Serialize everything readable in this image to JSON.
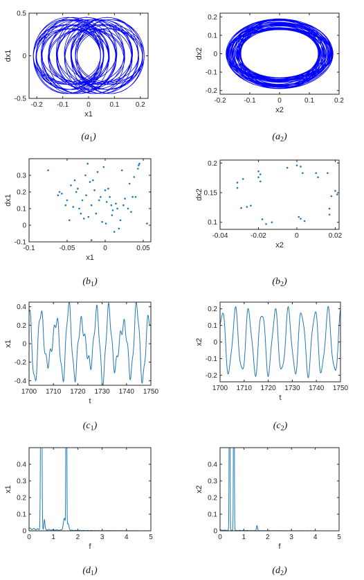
{
  "panels": [
    {
      "id": "a1",
      "caption": "(a1)",
      "caption_main": "(a",
      "caption_sub": "1",
      "caption_end": ")"
    },
    {
      "id": "a2",
      "caption": "(a2)",
      "caption_main": "(a",
      "caption_sub": "2",
      "caption_end": ")"
    },
    {
      "id": "b1",
      "caption": "(b1)",
      "caption_main": "(b",
      "caption_sub": "1",
      "caption_end": ")"
    },
    {
      "id": "b2",
      "caption": "(b2)",
      "caption_main": "(b",
      "caption_sub": "2",
      "caption_end": ")"
    },
    {
      "id": "c1",
      "caption": "(c1)",
      "caption_main": "(c",
      "caption_sub": "1",
      "caption_end": ")"
    },
    {
      "id": "c2",
      "caption": "(c2)",
      "caption_main": "(c",
      "caption_sub": "2",
      "caption_end": ")"
    },
    {
      "id": "d1",
      "caption": "(d1)",
      "caption_main": "(d",
      "caption_sub": "1",
      "caption_end": ")"
    },
    {
      "id": "d2",
      "caption": "(d2)",
      "caption_main": "(d",
      "caption_sub": "2",
      "caption_end": ")"
    }
  ],
  "chart_data": [
    {
      "id": "a1",
      "type": "line",
      "subtype": "phase-portrait",
      "xlabel": "x1",
      "ylabel": "dx1",
      "xlim": [
        -0.23,
        0.23
      ],
      "ylim": [
        -0.5,
        0.5
      ],
      "xticks": [
        -0.2,
        -0.1,
        0,
        0.1,
        0.2
      ],
      "xtick_labels": [
        "-0.2",
        "-0.1",
        "0",
        "0.1",
        "0.2"
      ],
      "yticks": [
        -0.5,
        0,
        0.5
      ],
      "ytick_labels": [
        "-0.5",
        "0",
        "0.5"
      ],
      "color": "#0000ff",
      "orbit": {
        "x_amplitudes": [
          0.13,
          0.085
        ],
        "x_freqs": [
          1,
          2.7
        ],
        "y_amplitude": 0.38,
        "y_amp_variation": 0.07,
        "turns": 40
      }
    },
    {
      "id": "a2",
      "type": "line",
      "subtype": "phase-portrait",
      "xlabel": "x2",
      "ylabel": "dx2",
      "xlim": [
        -0.2,
        0.2
      ],
      "ylim": [
        -0.22,
        0.22
      ],
      "xticks": [
        -0.2,
        -0.1,
        0,
        0.1,
        0.2
      ],
      "xtick_labels": [
        "-0.2",
        "-0.1",
        "0",
        "0.1",
        "0.2"
      ],
      "yticks": [
        -0.2,
        -0.1,
        0,
        0.1,
        0.2
      ],
      "ytick_labels": [
        "-0.2",
        "-0.1",
        "0",
        "0.1",
        "0.2"
      ],
      "color": "#0000ff",
      "orbit": {
        "x_amplitude": 0.155,
        "x_amp_variation": 0.025,
        "y_amplitude": 0.16,
        "y_amp_variation": 0.03,
        "turns": 40
      }
    },
    {
      "id": "b1",
      "type": "scatter",
      "subtype": "poincare-section",
      "xlabel": "x1",
      "ylabel": "dx1",
      "xlim": [
        -0.1,
        0.06
      ],
      "ylim": [
        -0.1,
        0.4
      ],
      "xticks": [
        -0.1,
        -0.05,
        0,
        0.05
      ],
      "xtick_labels": [
        "-0.1",
        "-0.05",
        "0",
        "0.05"
      ],
      "yticks": [
        -0.1,
        0,
        0.1,
        0.2,
        0.3
      ],
      "ytick_labels": [
        "-0.1",
        "0",
        "0.1",
        "0.2",
        "0.3"
      ],
      "color": "#1f77b4",
      "points": [
        [
          -0.075,
          0.33
        ],
        [
          -0.062,
          0.18
        ],
        [
          -0.06,
          0.2
        ],
        [
          -0.057,
          0.19
        ],
        [
          -0.052,
          0.12
        ],
        [
          -0.05,
          0.15
        ],
        [
          -0.047,
          0.03
        ],
        [
          -0.045,
          0.24
        ],
        [
          -0.042,
          0.11
        ],
        [
          -0.04,
          0.27
        ],
        [
          -0.038,
          0.2
        ],
        [
          -0.036,
          0.22
        ],
        [
          -0.034,
          0.1
        ],
        [
          -0.032,
          0.07
        ],
        [
          -0.03,
          0.15
        ],
        [
          -0.028,
          0.04
        ],
        [
          -0.026,
          0.3
        ],
        [
          -0.025,
          0.18
        ],
        [
          -0.023,
          0.37
        ],
        [
          -0.022,
          0.05
        ],
        [
          -0.02,
          0.26
        ],
        [
          -0.018,
          0.12
        ],
        [
          -0.016,
          0.27
        ],
        [
          -0.014,
          0.21
        ],
        [
          -0.012,
          0.07
        ],
        [
          -0.01,
          0.32
        ],
        [
          -0.008,
          0.15
        ],
        [
          -0.006,
          0.17
        ],
        [
          -0.004,
          0.02
        ],
        [
          -0.002,
          0.35
        ],
        [
          0.0,
          0.21
        ],
        [
          0.001,
          0.01
        ],
        [
          0.002,
          0.14
        ],
        [
          0.004,
          0.22
        ],
        [
          0.006,
          0.17
        ],
        [
          0.008,
          0.12
        ],
        [
          0.009,
          0.06
        ],
        [
          0.01,
          0.09
        ],
        [
          0.012,
          -0.04
        ],
        [
          0.014,
          0.13
        ],
        [
          0.016,
          0.1
        ],
        [
          0.018,
          -0.02
        ],
        [
          0.02,
          0.03
        ],
        [
          0.022,
          0.33
        ],
        [
          0.024,
          0.12
        ],
        [
          0.026,
          0.16
        ],
        [
          0.03,
          0.1
        ],
        [
          0.032,
          0.25
        ],
        [
          0.034,
          0.08
        ],
        [
          0.036,
          0.17
        ],
        [
          0.038,
          0.29
        ],
        [
          0.04,
          0.17
        ],
        [
          0.043,
          0.34
        ],
        [
          0.044,
          0.36
        ],
        [
          0.045,
          0.37
        ],
        [
          0.055,
          0.01
        ],
        [
          0.06,
          0.2
        ],
        [
          -0.018,
          -0.09
        ]
      ]
    },
    {
      "id": "b2",
      "type": "scatter",
      "subtype": "poincare-section",
      "xlabel": "x2",
      "ylabel": "dx2",
      "xlim": [
        -0.04,
        0.022
      ],
      "ylim": [
        0.088,
        0.205
      ],
      "xticks": [
        -0.04,
        -0.02,
        0,
        0.02
      ],
      "xtick_labels": [
        "-0.04",
        "-0.02",
        "0",
        "0.02"
      ],
      "yticks": [
        0.1,
        0.15,
        0.2
      ],
      "ytick_labels": [
        "0.1",
        "0.15",
        "0.2"
      ],
      "color": "#1f77b4",
      "points": [
        [
          -0.031,
          0.167
        ],
        [
          -0.031,
          0.158
        ],
        [
          -0.028,
          0.173
        ],
        [
          -0.029,
          0.124
        ],
        [
          -0.026,
          0.126
        ],
        [
          -0.024,
          0.128
        ],
        [
          -0.02,
          0.186
        ],
        [
          -0.02,
          0.176
        ],
        [
          -0.019,
          0.169
        ],
        [
          -0.019,
          0.181
        ],
        [
          -0.018,
          0.105
        ],
        [
          -0.016,
          0.097
        ],
        [
          -0.013,
          0.1
        ],
        [
          -0.005,
          0.192
        ],
        [
          0.0,
          0.196
        ],
        [
          0.002,
          0.194
        ],
        [
          0.001,
          0.109
        ],
        [
          0.002,
          0.106
        ],
        [
          0.004,
          0.102
        ],
        [
          0.003,
          0.183
        ],
        [
          0.01,
          0.183
        ],
        [
          0.011,
          0.176
        ],
        [
          0.016,
          0.183
        ],
        [
          0.017,
          0.123
        ],
        [
          0.017,
          0.113
        ],
        [
          0.018,
          0.144
        ],
        [
          0.02,
          0.153
        ],
        [
          0.021,
          0.147
        ]
      ]
    },
    {
      "id": "c1",
      "type": "line",
      "subtype": "time-series",
      "xlabel": "t",
      "ylabel": "x1",
      "xlim": [
        1700,
        1750
      ],
      "ylim": [
        -0.45,
        0.45
      ],
      "xticks": [
        1700,
        1710,
        1720,
        1730,
        1740,
        1750
      ],
      "xtick_labels": [
        "1700",
        "1710",
        "1720",
        "1730",
        "1740",
        "1750"
      ],
      "yticks": [
        -0.4,
        -0.2,
        0,
        0.2,
        0.4
      ],
      "ytick_labels": [
        "-0.4",
        "-0.2",
        "0",
        "0.2",
        "0.4"
      ],
      "color": "#1f77b4",
      "signal": {
        "components": [
          {
            "amp": 0.3,
            "period": 5.55
          },
          {
            "amp": 0.12,
            "period": 4.0
          },
          {
            "amp": 0.06,
            "period": 1.6
          }
        ]
      }
    },
    {
      "id": "c2",
      "type": "line",
      "subtype": "time-series",
      "xlabel": "t",
      "ylabel": "x2",
      "xlim": [
        1700,
        1750
      ],
      "ylim": [
        -0.24,
        0.24
      ],
      "xticks": [
        1700,
        1710,
        1720,
        1730,
        1740,
        1750
      ],
      "xtick_labels": [
        "1700",
        "1710",
        "1720",
        "1730",
        "1740",
        "1750"
      ],
      "yticks": [
        -0.2,
        -0.1,
        0,
        0.1,
        0.2
      ],
      "ytick_labels": [
        "-0.2",
        "-0.1",
        "0",
        "0.1",
        "0.2"
      ],
      "color": "#1f77b4",
      "signal": {
        "components": [
          {
            "amp": 0.185,
            "period": 5.5
          },
          {
            "amp": 0.03,
            "period": 2.4
          }
        ]
      }
    },
    {
      "id": "d1",
      "type": "line",
      "subtype": "spectrum",
      "xlabel": "f",
      "ylabel": "x1",
      "xlim": [
        0,
        5
      ],
      "ylim": [
        0,
        0.5
      ],
      "xticks": [
        0,
        1,
        2,
        3,
        4,
        5
      ],
      "xtick_labels": [
        "0",
        "1",
        "2",
        "3",
        "4",
        "5"
      ],
      "yticks": [
        0,
        0.1,
        0.2,
        0.3,
        0.4
      ],
      "ytick_labels": [
        "0",
        "0.1",
        "0.2",
        "0.3",
        "0.4"
      ],
      "color": "#1f77b4",
      "peaks": [
        {
          "f": 0.5,
          "height": 2.0,
          "width": 0.03
        },
        {
          "f": 0.63,
          "height": 0.06,
          "width": 0.03
        },
        {
          "f": 1.53,
          "height": 2.0,
          "width": 0.02
        },
        {
          "f": 1.45,
          "height": 0.07,
          "width": 0.06
        },
        {
          "f": 1.6,
          "height": 0.04,
          "width": 0.05
        }
      ],
      "floor": 0.012
    },
    {
      "id": "d2",
      "type": "line",
      "subtype": "spectrum",
      "xlabel": "f",
      "ylabel": "x2",
      "xlim": [
        0,
        5
      ],
      "ylim": [
        0,
        0.5
      ],
      "xticks": [
        0,
        1,
        2,
        3,
        4,
        5
      ],
      "xtick_labels": [
        "0",
        "1",
        "2",
        "3",
        "4",
        "5"
      ],
      "yticks": [
        0,
        0.1,
        0.2,
        0.3,
        0.4
      ],
      "ytick_labels": [
        "0",
        "0.1",
        "0.2",
        "0.3",
        "0.4"
      ],
      "color": "#1f77b4",
      "peaks": [
        {
          "f": 0.4,
          "height": 2.0,
          "width": 0.02
        },
        {
          "f": 0.58,
          "height": 2.0,
          "width": 0.02
        },
        {
          "f": 1.55,
          "height": 0.03,
          "width": 0.03
        }
      ],
      "floor": 0.004
    }
  ]
}
